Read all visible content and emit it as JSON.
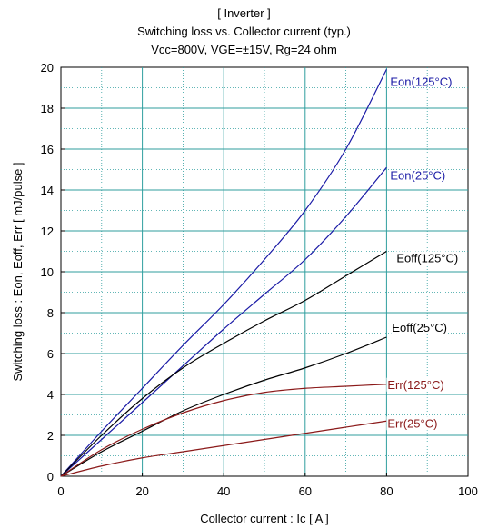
{
  "chart_data": {
    "type": "line",
    "title": "[ Inverter ]",
    "subtitle": "Switching loss  vs.  Collector current  (typ.)",
    "conditions": "Vcc=800V, VGE=±15V, Rg=24 ohm",
    "xlabel": "Collector current  :  Ic  [ A ]",
    "ylabel": "Switching loss  :  Eon, Eoff, Err  [ mJ/pulse ]",
    "xlim": [
      0,
      100
    ],
    "ylim": [
      0,
      20
    ],
    "xticks": [
      0,
      20,
      40,
      60,
      80,
      100
    ],
    "yticks": [
      0,
      2,
      4,
      6,
      8,
      10,
      12,
      14,
      16,
      18,
      20
    ],
    "grid": true,
    "legend": "inline labels at curve ends",
    "colors": {
      "grid": "#2f9e9e",
      "eon": "#1a1aa6",
      "eoff": "#000000",
      "err": "#8b1a1a"
    },
    "series": [
      {
        "name": "Eon(125°C)",
        "color": "#1a1aa6",
        "x": [
          0,
          10,
          20,
          30,
          40,
          50,
          60,
          70,
          80
        ],
        "y": [
          0,
          2.2,
          4.3,
          6.4,
          8.4,
          10.6,
          13.0,
          16.0,
          19.9
        ]
      },
      {
        "name": "Eon(25°C)",
        "color": "#1a1aa6",
        "x": [
          0,
          10,
          20,
          30,
          40,
          50,
          60,
          70,
          80
        ],
        "y": [
          0,
          1.8,
          3.6,
          5.4,
          7.2,
          8.9,
          10.6,
          12.7,
          15.1
        ]
      },
      {
        "name": "Eoff(125°C)",
        "color": "#000000",
        "x": [
          0,
          10,
          20,
          30,
          40,
          50,
          60,
          70,
          80
        ],
        "y": [
          0,
          2.0,
          3.8,
          5.3,
          6.5,
          7.6,
          8.6,
          9.8,
          11.0
        ]
      },
      {
        "name": "Eoff(25°C)",
        "color": "#000000",
        "x": [
          0,
          10,
          20,
          30,
          40,
          50,
          60,
          70,
          80
        ],
        "y": [
          0,
          1.2,
          2.2,
          3.2,
          4.0,
          4.7,
          5.3,
          6.0,
          6.8
        ]
      },
      {
        "name": "Err(125°C)",
        "color": "#8b1a1a",
        "x": [
          0,
          10,
          20,
          30,
          40,
          50,
          60,
          70,
          80
        ],
        "y": [
          0,
          1.3,
          2.3,
          3.1,
          3.7,
          4.1,
          4.3,
          4.4,
          4.5
        ]
      },
      {
        "name": "Err(25°C)",
        "color": "#8b1a1a",
        "x": [
          0,
          10,
          20,
          30,
          40,
          50,
          60,
          70,
          80
        ],
        "y": [
          0,
          0.5,
          0.9,
          1.2,
          1.5,
          1.8,
          2.1,
          2.4,
          2.7
        ]
      }
    ]
  }
}
